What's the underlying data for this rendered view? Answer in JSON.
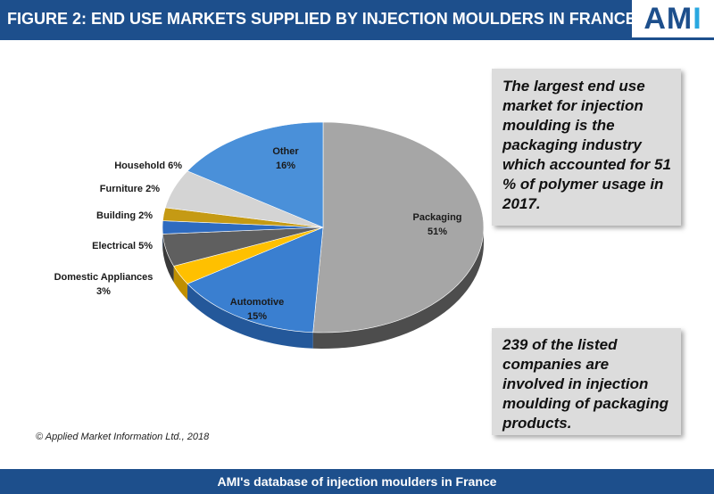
{
  "header": {
    "title": "FIGURE 2: END USE MARKETS SUPPLIED BY INJECTION MOULDERS IN FRANCE",
    "logo_text": "AMI",
    "logo_main": "AM",
    "logo_accent": "I",
    "bar_color": "#1d4f8c",
    "logo_accent_color": "#29a8e0"
  },
  "callouts": {
    "top": "The largest end use market for injection moulding is the packaging industry which accounted for 51 % of polymer usage in 2017.",
    "bottom": "239 of the listed companies are involved in injection moulding of packaging products."
  },
  "copyright": "© Applied Market Information Ltd., 2018",
  "footer": {
    "text": "AMI's database of injection moulders in France"
  },
  "chart_data": {
    "type": "pie",
    "style": "3d",
    "title": "FIGURE 2: END USE MARKETS SUPPLIED BY INJECTION MOULDERS IN FRANCE",
    "slices": [
      {
        "name": "Packaging",
        "value": 51,
        "label_lines": [
          "Packaging",
          "51%"
        ],
        "color": "#a6a6a6",
        "side_color": "#4d4d4d"
      },
      {
        "name": "Automotive",
        "value": 15,
        "label_lines": [
          "Automotive",
          "15%"
        ],
        "color": "#3a7fd0",
        "side_color": "#24589a"
      },
      {
        "name": "Domestic Appliances",
        "value": 3,
        "label_lines": [
          "Domestic Appliances",
          "3%"
        ],
        "color": "#ffc000",
        "side_color": "#bf8f00"
      },
      {
        "name": "Electrical",
        "value": 5,
        "label_lines": [
          "Electrical 5%"
        ],
        "color": "#5f5f5f",
        "side_color": "#3a3a3a"
      },
      {
        "name": "Building",
        "value": 2,
        "label_lines": [
          "Building 2%"
        ],
        "color": "#2e6bc0",
        "side_color": "#1e4b8a"
      },
      {
        "name": "Furniture",
        "value": 2,
        "label_lines": [
          "Furniture 2%"
        ],
        "color": "#c59a14",
        "side_color": "#8a6b0c"
      },
      {
        "name": "Household",
        "value": 6,
        "label_lines": [
          "Household 6%"
        ],
        "color": "#d4d4d4",
        "side_color": "#9a9a9a"
      },
      {
        "name": "Other",
        "value": 16,
        "label_lines": [
          "Other",
          "16%"
        ],
        "color": "#4a90d9",
        "side_color": "#2c64a8"
      }
    ],
    "legend": "none"
  }
}
